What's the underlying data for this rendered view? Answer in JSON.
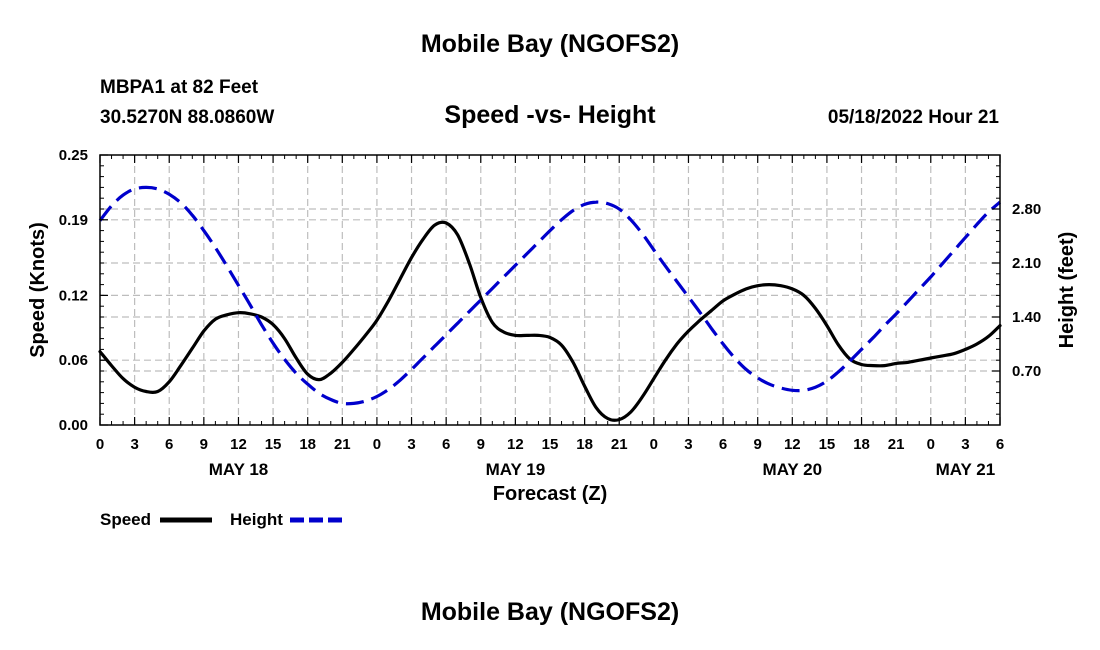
{
  "header": {
    "title": "Mobile Bay (NGOFS2)",
    "station": "MBPA1 at 82 Feet",
    "coords": "30.5270N  88.0860W",
    "subtitle": "Speed -vs- Height",
    "datetime": "05/18/2022 Hour 21"
  },
  "footer": {
    "title": "Mobile Bay (NGOFS2)"
  },
  "chart_data": {
    "type": "line",
    "title": "Speed -vs- Height",
    "xlabel": "Forecast (Z)",
    "ylabel": "Speed (Knots)",
    "y2label": "Height (feet)",
    "x_tick_labels": [
      "0",
      "3",
      "6",
      "9",
      "12",
      "15",
      "18",
      "21",
      "0",
      "3",
      "6",
      "9",
      "12",
      "15",
      "18",
      "21",
      "0",
      "3",
      "6",
      "9",
      "12",
      "15",
      "18",
      "21",
      "0",
      "3",
      "6"
    ],
    "date_labels": [
      {
        "label": "MAY 18",
        "hour": 12
      },
      {
        "label": "MAY 19",
        "hour": 36
      },
      {
        "label": "MAY 20",
        "hour": 60
      },
      {
        "label": "MAY 21",
        "hour": 75
      }
    ],
    "xlim": [
      0,
      78
    ],
    "ylim": [
      0,
      0.25
    ],
    "y_ticks": [
      0.0,
      0.06,
      0.12,
      0.19,
      0.25
    ],
    "y_tick_labels": [
      "0.00",
      "0.06",
      "0.12",
      "0.19",
      "0.25"
    ],
    "y2lim": [
      0,
      3.5
    ],
    "y2_ticks": [
      0.7,
      1.4,
      2.1,
      2.8
    ],
    "y2_tick_labels": [
      "0.70",
      "1.40",
      "2.10",
      "2.80"
    ],
    "grid": true,
    "legend_placement": "bottom-left",
    "series": [
      {
        "name": "Speed",
        "axis": "left",
        "color": "#000000",
        "style": "solid",
        "x": [
          0,
          1,
          2,
          3,
          4,
          5,
          6,
          7,
          8,
          9,
          10,
          11,
          12,
          13,
          14,
          15,
          16,
          17,
          18,
          19,
          20,
          21,
          22,
          23,
          24,
          25,
          26,
          27,
          28,
          29,
          30,
          31,
          32,
          33,
          34,
          35,
          36,
          37,
          38,
          39,
          40,
          41,
          42,
          43,
          44,
          45,
          46,
          47,
          48,
          49,
          50,
          51,
          52,
          53,
          54,
          55,
          56,
          57,
          58,
          59,
          60,
          61,
          62,
          63,
          64,
          65,
          66,
          67,
          68,
          69,
          70,
          71,
          72,
          73,
          74,
          75,
          76,
          77,
          78
        ],
        "values": [
          0.068,
          0.055,
          0.043,
          0.035,
          0.031,
          0.031,
          0.04,
          0.055,
          0.071,
          0.087,
          0.098,
          0.102,
          0.104,
          0.103,
          0.1,
          0.093,
          0.08,
          0.062,
          0.047,
          0.042,
          0.048,
          0.058,
          0.07,
          0.083,
          0.097,
          0.115,
          0.135,
          0.155,
          0.172,
          0.185,
          0.187,
          0.176,
          0.15,
          0.118,
          0.095,
          0.086,
          0.083,
          0.083,
          0.083,
          0.081,
          0.074,
          0.058,
          0.036,
          0.016,
          0.006,
          0.005,
          0.012,
          0.026,
          0.043,
          0.06,
          0.075,
          0.087,
          0.097,
          0.106,
          0.115,
          0.121,
          0.126,
          0.129,
          0.13,
          0.129,
          0.126,
          0.12,
          0.108,
          0.092,
          0.074,
          0.061,
          0.056,
          0.055,
          0.055,
          0.057,
          0.058,
          0.06,
          0.062,
          0.064,
          0.066,
          0.07,
          0.075,
          0.082,
          0.092
        ],
        "x_extra": [
          78
        ],
        "note": ""
      },
      {
        "name": "Height",
        "axis": "right",
        "color": "#0000cc",
        "style": "dashed",
        "x": [
          0,
          1,
          2,
          3,
          4,
          5,
          6,
          7,
          8,
          9,
          10,
          11,
          12,
          13,
          14,
          15,
          16,
          17,
          18,
          19,
          20,
          21,
          22,
          23,
          24,
          25,
          26,
          27,
          28,
          29,
          30,
          31,
          32,
          33,
          34,
          35,
          36,
          37,
          38,
          39,
          40,
          41,
          42,
          43,
          44,
          45,
          46,
          47,
          48,
          49,
          50,
          51,
          52,
          53,
          54,
          55,
          56,
          57,
          58,
          59,
          60,
          61,
          62,
          63,
          64,
          65,
          66,
          67,
          68,
          69,
          70,
          71,
          72,
          73,
          74,
          75,
          76,
          77,
          78
        ],
        "values": [
          2.65,
          2.84,
          2.98,
          3.06,
          3.08,
          3.06,
          2.99,
          2.88,
          2.72,
          2.52,
          2.3,
          2.06,
          1.81,
          1.56,
          1.3,
          1.06,
          0.85,
          0.67,
          0.53,
          0.41,
          0.33,
          0.28,
          0.28,
          0.31,
          0.37,
          0.46,
          0.58,
          0.72,
          0.87,
          1.02,
          1.17,
          1.32,
          1.47,
          1.62,
          1.77,
          1.92,
          2.07,
          2.22,
          2.37,
          2.52,
          2.66,
          2.78,
          2.86,
          2.89,
          2.87,
          2.8,
          2.66,
          2.48,
          2.27,
          2.06,
          1.86,
          1.66,
          1.46,
          1.25,
          1.05,
          0.87,
          0.72,
          0.61,
          0.53,
          0.48,
          0.45,
          0.45,
          0.49,
          0.57,
          0.69,
          0.83,
          0.98,
          1.13,
          1.29,
          1.44,
          1.6,
          1.76,
          1.92,
          2.09,
          2.26,
          2.43,
          2.6,
          2.76,
          2.89
        ]
      }
    ]
  },
  "legend": {
    "items": [
      {
        "label": "Speed",
        "color": "#000000",
        "style": "solid"
      },
      {
        "label": "Height",
        "color": "#0000cc",
        "style": "dashed"
      }
    ]
  }
}
